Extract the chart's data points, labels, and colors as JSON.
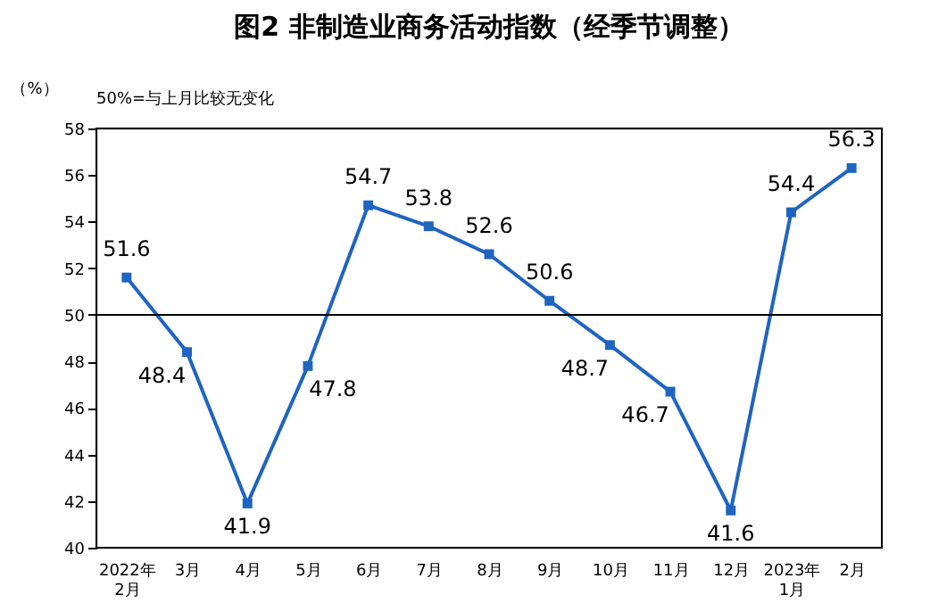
{
  "chart_data": {
    "type": "line",
    "title": "图2  非制造业商务活动指数（经季节调整）",
    "ylabel": "（%）",
    "annotations": [
      "50%=与上月比较无变化"
    ],
    "categories": [
      "2022年\n2月",
      "3月",
      "4月",
      "5月",
      "6月",
      "7月",
      "8月",
      "9月",
      "10月",
      "11月",
      "12月",
      "2023年\n1月",
      "2月"
    ],
    "series": [
      {
        "color": "#1f64c0",
        "values": [
          51.6,
          48.4,
          41.9,
          47.8,
          54.7,
          53.8,
          52.6,
          50.6,
          48.7,
          46.7,
          41.6,
          54.4,
          56.3
        ]
      }
    ],
    "ylim": [
      40,
      58
    ],
    "yticks": [
      40,
      42,
      44,
      46,
      48,
      50,
      52,
      54,
      56,
      58
    ],
    "ref_lines": [
      {
        "axis": "y",
        "value": 50,
        "color": "#000000"
      }
    ],
    "marker": "square",
    "line_style": "solid",
    "data_labels": true,
    "grid": false,
    "legend": false
  }
}
